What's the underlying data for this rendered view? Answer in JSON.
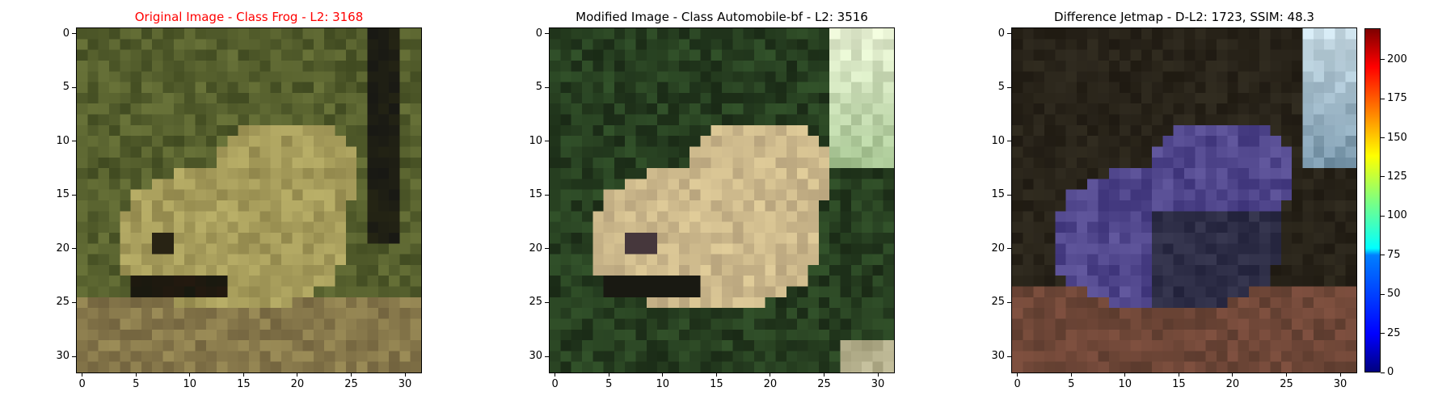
{
  "figure": {
    "panels": [
      {
        "title": "Original Image - Class Frog - L2: 3168",
        "title_color": "#ff0000",
        "kind": "original"
      },
      {
        "title": "Modified Image - Class Automobile-bf - L2: 3516",
        "title_color": "#000000",
        "kind": "modified"
      },
      {
        "title": "Difference Jetmap - D-L2: 1723, SSIM: 48.3",
        "title_color": "#000000",
        "kind": "difference"
      }
    ]
  },
  "chart_data": [
    {
      "type": "heatmap",
      "title": "Original Image - Class Frog - L2: 3168",
      "xlim": [
        -0.5,
        31.5
      ],
      "ylim": [
        31.5,
        -0.5
      ],
      "x_ticks": [
        0,
        5,
        10,
        15,
        20,
        25,
        30
      ],
      "y_ticks": [
        0,
        5,
        10,
        15,
        20,
        25,
        30
      ],
      "image_size": [
        32,
        32
      ],
      "dominant_colors": [
        "#7a7a3a",
        "#a09a55",
        "#4a5a22",
        "#1c1c14"
      ]
    },
    {
      "type": "heatmap",
      "title": "Modified Image - Class Automobile-bf - L2: 3516",
      "xlim": [
        -0.5,
        31.5
      ],
      "ylim": [
        31.5,
        -0.5
      ],
      "x_ticks": [
        0,
        5,
        10,
        15,
        20,
        25,
        30
      ],
      "y_ticks": [
        0,
        5,
        10,
        15,
        20,
        25,
        30
      ],
      "image_size": [
        32,
        32
      ],
      "dominant_colors": [
        "#2c4a22",
        "#c8b88e",
        "#e8f5dc",
        "#1a2412"
      ]
    },
    {
      "type": "heatmap",
      "title": "Difference Jetmap - D-L2: 1723, SSIM: 48.3",
      "xlim": [
        -0.5,
        31.5
      ],
      "ylim": [
        31.5,
        -0.5
      ],
      "x_ticks": [
        0,
        5,
        10,
        15,
        20,
        25,
        30
      ],
      "y_ticks": [
        0,
        5,
        10,
        15,
        20,
        25,
        30
      ],
      "image_size": [
        32,
        32
      ],
      "colorbar": {
        "colormap": "jet",
        "range": [
          0,
          220
        ],
        "ticks": [
          0,
          25,
          50,
          75,
          100,
          125,
          150,
          175,
          200
        ]
      },
      "dominant_colors": [
        "#2a2418",
        "#5a4aa0",
        "#7a4a3a",
        "#9ab8c8"
      ]
    }
  ]
}
